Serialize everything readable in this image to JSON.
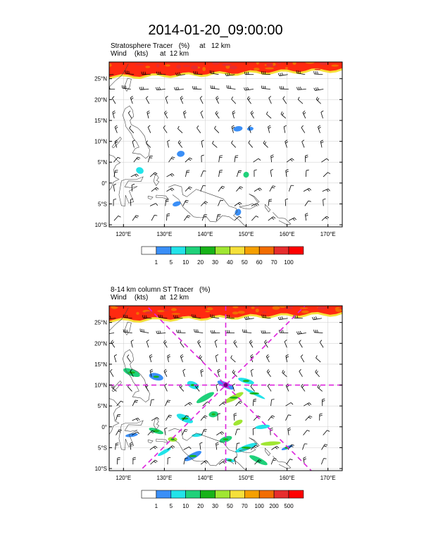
{
  "title": "2014-01-20_09:00:00",
  "panel1": {
    "line1": "Stratosphere Tracer   (%)     at   12 km",
    "line2": "Wind    (kts)      at  12 km",
    "colorbar_labels": [
      "1",
      "5",
      "10",
      "20",
      "30",
      "40",
      "50",
      "60",
      "70",
      "100"
    ],
    "colorbar_colors": [
      "#ffffff",
      "#3a8ff7",
      "#22e3e9",
      "#1fd17a",
      "#17b319",
      "#a0e632",
      "#f5e03a",
      "#f5a000",
      "#f26d00",
      "#e62d2d",
      "#ff0000"
    ]
  },
  "panel2": {
    "line1": "8-14 km column ST Tracer   (%)",
    "line2": "Wind    (kts)      at  12 km",
    "colorbar_labels": [
      "1",
      "5",
      "10",
      "20",
      "30",
      "50",
      "70",
      "100",
      "200",
      "500"
    ],
    "colorbar_colors": [
      "#ffffff",
      "#3a8ff7",
      "#22e3e9",
      "#1fd17a",
      "#17b319",
      "#a0e632",
      "#f5e03a",
      "#f5a000",
      "#f26d00",
      "#e62d2d",
      "#ff0000"
    ]
  },
  "lat_labels": [
    "25°N",
    "20°N",
    "15°N",
    "10°N",
    "5°N",
    "0°",
    "5°S",
    "10°S"
  ],
  "lon_labels": [
    "120°E",
    "130°E",
    "140°E",
    "150°E",
    "160°E",
    "170°E"
  ],
  "map_extent": {
    "lon": [
      116.5,
      173.5
    ],
    "lat": [
      -10.5,
      29
    ]
  },
  "cross_section_center": {
    "lon": 145,
    "lat": 10
  },
  "colors": {
    "cross_lines": "#dd22dd",
    "coast": "#444444",
    "grid": "#cccccc"
  }
}
